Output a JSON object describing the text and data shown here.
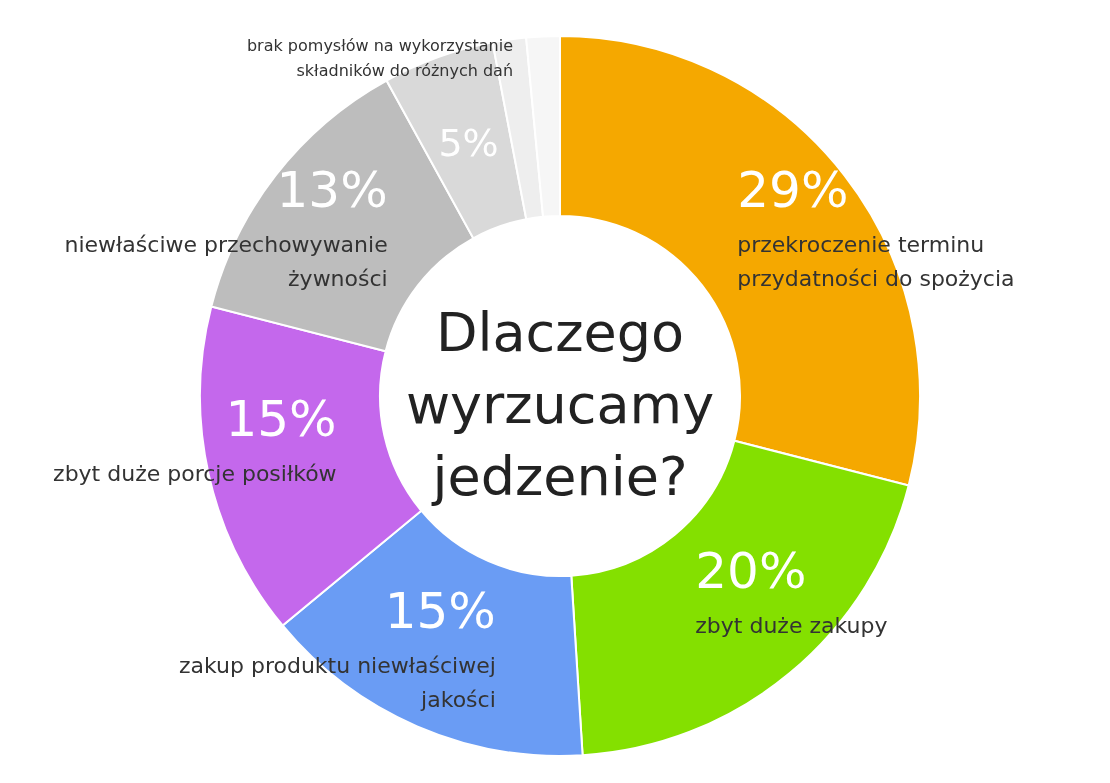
{
  "chart_data": {
    "type": "donut",
    "title": "Dlaczego wyrzucamy jedzenie?",
    "categories": [
      "przekroczenie terminu przydatności do spożycia",
      "zbyt duże zakupy",
      "zakup produktu niewłaściwej jakości",
      "zbyt duże porcje posiłków",
      "niewłaściwe przechowywanie żywności",
      "brak pomysłów na wykorzystanie składników do różnych dań",
      null,
      null
    ],
    "values": [
      29,
      20,
      15,
      15,
      13,
      5,
      1.5,
      1.5
    ],
    "value_labels": [
      "29%",
      "20%",
      "15%",
      "15%",
      "13%",
      "5%",
      null,
      null
    ],
    "colors": [
      "#f5a800",
      "#84e000",
      "#6a9cf4",
      "#c468ec",
      "#bdbdbd",
      "#d9d9d9",
      "#eeeeee",
      "#f6f6f6"
    ],
    "legend": false
  }
}
